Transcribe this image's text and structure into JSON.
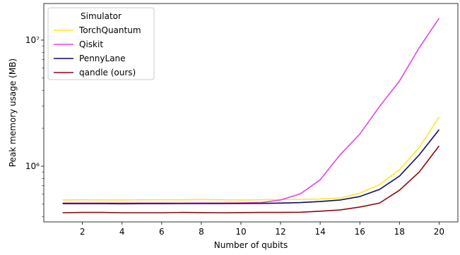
{
  "chart_data": {
    "type": "line",
    "xlabel": "Number of qubits",
    "ylabel": "Peak memory usage (MB)",
    "x": [
      1,
      2,
      3,
      4,
      5,
      6,
      7,
      8,
      9,
      10,
      11,
      12,
      13,
      14,
      15,
      16,
      17,
      18,
      19,
      20
    ],
    "series": [
      {
        "name": "TorchQuantum",
        "color": "#fde725",
        "values": [
          540000,
          542000,
          541000,
          540000,
          542000,
          543000,
          542000,
          544000,
          542000,
          540000,
          542000,
          544000,
          546000,
          550000,
          560000,
          610000,
          715000,
          940000,
          1410000,
          2460000
        ]
      },
      {
        "name": "Qiskit",
        "color": "#e444e4",
        "values": [
          510000,
          510000,
          510000,
          510000,
          510000,
          510000,
          510000,
          511000,
          511000,
          512000,
          515000,
          540000,
          605000,
          780000,
          1230000,
          1800000,
          2980000,
          4740000,
          8700000,
          14900000
        ]
      },
      {
        "name": "PennyLane",
        "color": "#0d0a6b",
        "values": [
          505000,
          505000,
          505000,
          504000,
          505000,
          505000,
          506000,
          506000,
          506000,
          507000,
          508000,
          510000,
          515000,
          525000,
          540000,
          575000,
          655000,
          835000,
          1230000,
          1950000
        ]
      },
      {
        "name": "qandle (ours)",
        "color": "#8b0a0a",
        "values": [
          428000,
          430000,
          430000,
          428000,
          428000,
          428000,
          430000,
          429000,
          428000,
          429000,
          430000,
          430000,
          432000,
          440000,
          450000,
          475000,
          510000,
          645000,
          900000,
          1450000
        ]
      }
    ],
    "legend_title": "Simulator",
    "legend": "upper left",
    "xlim": [
      0.05,
      20.95
    ],
    "xticks": [
      2,
      4,
      6,
      8,
      10,
      12,
      14,
      16,
      18,
      20
    ],
    "ylim": [
      362000,
      19500000
    ],
    "ylog": true,
    "yticks": [
      {
        "value": 1000000,
        "label": "10⁶"
      },
      {
        "value": 10000000,
        "label": "10⁷"
      }
    ],
    "yminorticks": [
      400000,
      500000,
      600000,
      700000,
      800000,
      900000,
      2000000,
      3000000,
      4000000,
      5000000,
      6000000,
      7000000,
      8000000,
      9000000
    ]
  }
}
